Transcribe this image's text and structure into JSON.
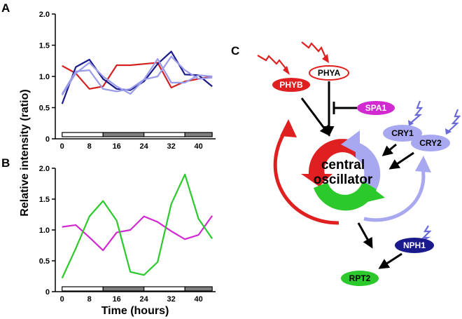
{
  "panels": {
    "a": "A",
    "b": "B",
    "c": "C"
  },
  "axes": {
    "ylabel": "Relative intensity (ratio)",
    "xlabel": "Time (hours)",
    "x_ticks": [
      "0",
      "8",
      "16",
      "24",
      "32",
      "40"
    ],
    "y_ticks": [
      "0",
      "0.5",
      "1.0",
      "1.5",
      "2.0"
    ]
  },
  "chart_data": [
    {
      "type": "line",
      "panel": "A",
      "x": [
        0,
        4,
        8,
        12,
        16,
        20,
        24,
        28,
        32,
        36,
        40,
        44
      ],
      "ylim": [
        0,
        2.0
      ],
      "xlim": [
        -2,
        45
      ],
      "light_bar": [
        {
          "start": 0,
          "end": 12,
          "state": "light"
        },
        {
          "start": 12,
          "end": 24,
          "state": "dark"
        },
        {
          "start": 24,
          "end": 36,
          "state": "light"
        },
        {
          "start": 36,
          "end": 44,
          "state": "dark"
        }
      ],
      "series": [
        {
          "color": "#d42020",
          "values": [
            1.17,
            1.05,
            0.8,
            0.84,
            1.18,
            1.18,
            1.2,
            1.22,
            0.82,
            0.92,
            0.96,
            1.0
          ]
        },
        {
          "color": "#1a1a8c",
          "values": [
            0.56,
            1.15,
            1.27,
            0.96,
            0.8,
            0.78,
            0.92,
            1.2,
            1.4,
            1.03,
            1.02,
            0.84
          ]
        },
        {
          "color": "#9a9aea",
          "values": [
            0.7,
            1.05,
            1.22,
            1.0,
            0.84,
            0.72,
            0.95,
            1.0,
            1.32,
            1.1,
            0.96,
            0.98
          ]
        },
        {
          "color": "#9a9aea",
          "values": [
            0.72,
            1.08,
            1.1,
            0.8,
            0.76,
            0.8,
            0.95,
            1.28,
            0.9,
            0.9,
            1.02,
            1.0
          ]
        }
      ]
    },
    {
      "type": "line",
      "panel": "B",
      "x": [
        0,
        4,
        8,
        12,
        16,
        20,
        24,
        28,
        32,
        36,
        40,
        44
      ],
      "ylim": [
        0,
        2.0
      ],
      "xlim": [
        -2,
        45
      ],
      "light_bar": [
        {
          "start": 0,
          "end": 12,
          "state": "light"
        },
        {
          "start": 12,
          "end": 24,
          "state": "dark"
        },
        {
          "start": 24,
          "end": 36,
          "state": "light"
        },
        {
          "start": 36,
          "end": 44,
          "state": "dark"
        }
      ],
      "series": [
        {
          "color": "#d02ad0",
          "values": [
            1.05,
            1.08,
            0.88,
            0.67,
            0.96,
            1.0,
            1.22,
            1.13,
            0.98,
            0.85,
            0.92,
            1.23
          ]
        },
        {
          "color": "#2cc92c",
          "values": [
            0.22,
            0.7,
            1.22,
            1.47,
            1.15,
            0.32,
            0.27,
            0.48,
            1.42,
            1.9,
            1.18,
            0.86
          ]
        }
      ]
    }
  ],
  "diagram": {
    "nodes": {
      "phyb": "PHYB",
      "phya": "PHYA",
      "spa1": "SPA1",
      "cry1": "CRY1",
      "cry2": "CRY2",
      "nph1": "NPH1",
      "rpt2": "RPT2",
      "osc_line1": "central",
      "osc_line2": "oscillator"
    },
    "colors": {
      "red": "#e02020",
      "purple_light": "#a8a8f0",
      "navy": "#1a1a8c",
      "magenta": "#d02ad0",
      "green": "#2cc92c",
      "black": "#000000"
    }
  }
}
